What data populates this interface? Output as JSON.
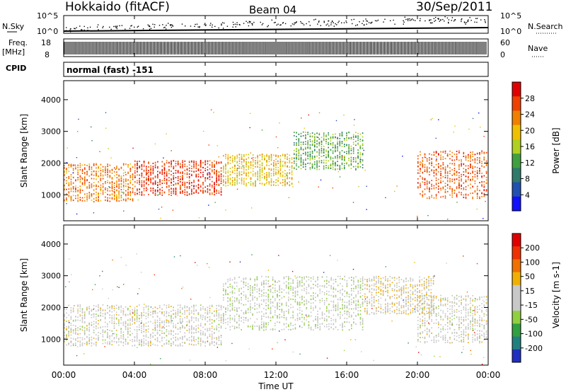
{
  "header": {
    "station": "Hokkaido (fitACF)",
    "beam": "Beam 04",
    "date": "30/Sep/2011"
  },
  "top_panels": {
    "nsky_label": "N.Sky",
    "nsky_ticks": [
      "10^5",
      "10^0"
    ],
    "nsearch_label": "N.Search",
    "nsearch_ticks_right": [
      "10^5",
      "10^0"
    ],
    "freq_label": "Freq.",
    "freq_unit": "[MHz]",
    "freq_ticks": [
      "18",
      "8"
    ],
    "nave_label": "Nave",
    "nave_ticks": [
      "60",
      "0"
    ],
    "cpid_label": "CPID",
    "cpid_text": "normal (fast) -151"
  },
  "colors": {
    "power_scale": [
      "#1010ff",
      "#2050b0",
      "#2f7a6a",
      "#40a040",
      "#b0d020",
      "#f0c000",
      "#f08000",
      "#f04000",
      "#e00000"
    ],
    "velocity_scale": [
      "#2030c0",
      "#208080",
      "#30a040",
      "#90d040",
      "#c8c8c8",
      "#c8c8c8",
      "#f0b000",
      "#f07000",
      "#f03000",
      "#e00000"
    ]
  },
  "chart_data": [
    {
      "type": "heatmap",
      "name": "power",
      "xlabel": "",
      "ylabel": "Slant Range [km]",
      "yticks": [
        1000,
        2000,
        3000,
        4000
      ],
      "ylim": [
        180,
        4600
      ],
      "xlim": [
        "00:00",
        "24:00"
      ],
      "colorbar": {
        "label": "Power [dB]",
        "ticks": [
          "28",
          "24",
          "20",
          "16",
          "12",
          "8",
          "4"
        ],
        "range": [
          0,
          30
        ]
      },
      "bands": [
        {
          "t_start": 0,
          "t_end": 4,
          "r_start": 800,
          "r_end": 2000,
          "value": 22
        },
        {
          "t_start": 4,
          "t_end": 9,
          "r_start": 1000,
          "r_end": 2100,
          "value": 26
        },
        {
          "t_start": 9,
          "t_end": 13,
          "r_start": 1300,
          "r_end": 2300,
          "value": 18
        },
        {
          "t_start": 13,
          "t_end": 17,
          "r_start": 1800,
          "r_end": 3000,
          "value": 12
        },
        {
          "t_start": 20,
          "t_end": 24,
          "r_start": 900,
          "r_end": 2400,
          "value": 24
        }
      ]
    },
    {
      "type": "heatmap",
      "name": "velocity",
      "xlabel": "Time UT",
      "ylabel": "Slant Range [km]",
      "yticks": [
        1000,
        2000,
        3000,
        4000
      ],
      "ylim": [
        180,
        4600
      ],
      "xticks": [
        "00:00",
        "04:00",
        "08:00",
        "12:00",
        "16:00",
        "20:00",
        "00:00"
      ],
      "colorbar": {
        "label": "Velocity [m s-1]",
        "ticks": [
          "200",
          "100",
          "50",
          "15",
          "-15",
          "-50",
          "-100",
          "-200"
        ],
        "range": [
          -250,
          250
        ]
      },
      "bands": [
        {
          "t_start": 0,
          "t_end": 9,
          "r_start": 800,
          "r_end": 2100,
          "value": 0
        },
        {
          "t_start": 9,
          "t_end": 17,
          "r_start": 1300,
          "r_end": 3000,
          "value": -20
        },
        {
          "t_start": 17,
          "t_end": 21,
          "r_start": 1800,
          "r_end": 3000,
          "value": 30
        },
        {
          "t_start": 20,
          "t_end": 24,
          "r_start": 900,
          "r_end": 2400,
          "value": 0
        }
      ]
    }
  ]
}
